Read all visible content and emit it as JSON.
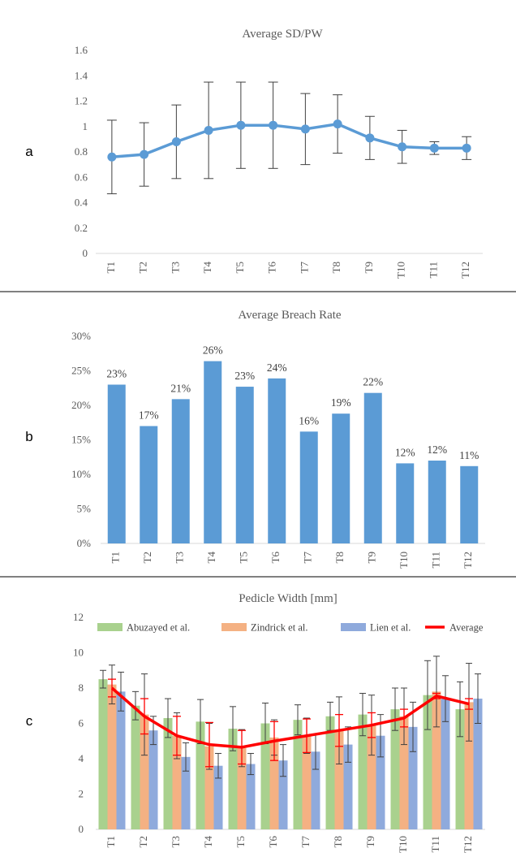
{
  "chart_data": [
    {
      "type": "line",
      "panel_label": "a",
      "title": "Average SD/PW",
      "categories": [
        "T1",
        "T2",
        "T3",
        "T4",
        "T5",
        "T6",
        "T7",
        "T8",
        "T9",
        "T10",
        "T11",
        "T12"
      ],
      "values": [
        0.76,
        0.78,
        0.88,
        0.97,
        1.01,
        1.01,
        0.98,
        1.02,
        0.91,
        0.84,
        0.83,
        0.83
      ],
      "error_upper": [
        1.05,
        1.03,
        1.17,
        1.35,
        1.35,
        1.35,
        1.26,
        1.25,
        1.08,
        0.97,
        0.88,
        0.92
      ],
      "error_lower": [
        0.47,
        0.53,
        0.59,
        0.59,
        0.67,
        0.67,
        0.7,
        0.79,
        0.74,
        0.71,
        0.78,
        0.74
      ],
      "y_ticks": [
        "0",
        "0.2",
        "0.4",
        "0.6",
        "0.8",
        "1",
        "1.2",
        "1.4",
        "1.6"
      ],
      "ylim": [
        0,
        1.6
      ],
      "color": "#5B9BD5"
    },
    {
      "type": "bar",
      "panel_label": "b",
      "title": "Average Breach Rate",
      "categories": [
        "T1",
        "T2",
        "T3",
        "T4",
        "T5",
        "T6",
        "T7",
        "T8",
        "T9",
        "T10",
        "T11",
        "T12"
      ],
      "values": [
        23.0,
        17.0,
        20.9,
        26.4,
        22.7,
        23.9,
        16.2,
        18.8,
        21.8,
        11.6,
        12.0,
        11.2
      ],
      "data_labels": [
        "23%",
        "17%",
        "21%",
        "26%",
        "23%",
        "24%",
        "16%",
        "19%",
        "22%",
        "12%",
        "12%",
        "11%"
      ],
      "y_ticks": [
        "0%",
        "5%",
        "10%",
        "15%",
        "20%",
        "25%",
        "30%"
      ],
      "ylim": [
        0,
        30
      ],
      "color": "#5B9BD5"
    },
    {
      "type": "bar",
      "panel_label": "c",
      "title": "Pedicle Width [mm]",
      "categories": [
        "T1",
        "T2",
        "T3",
        "T4",
        "T5",
        "T6",
        "T7",
        "T8",
        "T9",
        "T10",
        "T11",
        "T12"
      ],
      "y_ticks": [
        "0",
        "2",
        "4",
        "6",
        "8",
        "10",
        "12"
      ],
      "ylim": [
        0,
        12
      ],
      "series": [
        {
          "name": "Abuzayed et al.",
          "color": "#A9D18E",
          "values": [
            8.5,
            7.0,
            6.3,
            6.1,
            5.7,
            6.0,
            6.2,
            6.4,
            6.5,
            6.8,
            7.6,
            6.8
          ],
          "error_upper": [
            9.0,
            7.8,
            7.4,
            7.35,
            6.95,
            7.15,
            7.05,
            7.2,
            7.7,
            8.0,
            9.55,
            8.35
          ],
          "error_lower": [
            8.0,
            6.2,
            5.2,
            4.85,
            4.45,
            4.85,
            5.35,
            5.6,
            5.3,
            5.6,
            5.65,
            5.25
          ]
        },
        {
          "name": "Zindrick et al.",
          "color": "#F4B183",
          "values": [
            8.2,
            6.5,
            5.3,
            4.7,
            4.6,
            5.2,
            5.3,
            5.6,
            5.9,
            6.4,
            7.8,
            7.2
          ],
          "error_upper": [
            9.3,
            8.8,
            6.6,
            6.0,
            5.65,
            6.2,
            6.3,
            7.5,
            7.6,
            8.0,
            9.8,
            9.4
          ],
          "error_lower": [
            7.1,
            4.2,
            4.0,
            3.4,
            3.55,
            4.2,
            4.3,
            3.7,
            4.2,
            4.8,
            5.8,
            5.0
          ]
        },
        {
          "name": "Lien et al.",
          "color": "#8FAADC",
          "values": [
            7.8,
            5.6,
            4.1,
            3.6,
            3.7,
            3.9,
            4.4,
            4.8,
            5.3,
            5.8,
            7.4,
            7.4
          ],
          "error_upper": [
            8.9,
            6.4,
            4.9,
            4.3,
            4.3,
            4.8,
            5.4,
            5.8,
            6.5,
            7.2,
            8.7,
            8.8
          ],
          "error_lower": [
            6.7,
            4.8,
            3.3,
            2.9,
            3.1,
            3.0,
            3.4,
            3.8,
            4.1,
            4.4,
            6.1,
            6.0
          ]
        },
        {
          "name": "Average",
          "color": "#FF0000",
          "kind": "line",
          "values": [
            8.0,
            6.4,
            5.3,
            4.8,
            4.65,
            5.0,
            5.3,
            5.6,
            5.9,
            6.3,
            7.55,
            7.1
          ],
          "error_upper": [
            8.5,
            7.4,
            6.4,
            6.05,
            5.6,
            6.1,
            6.25,
            6.5,
            6.6,
            6.8,
            7.7,
            7.4
          ],
          "error_lower": [
            7.5,
            5.4,
            4.2,
            3.55,
            3.7,
            3.9,
            4.35,
            4.7,
            5.2,
            5.8,
            7.4,
            6.8
          ]
        }
      ]
    }
  ]
}
